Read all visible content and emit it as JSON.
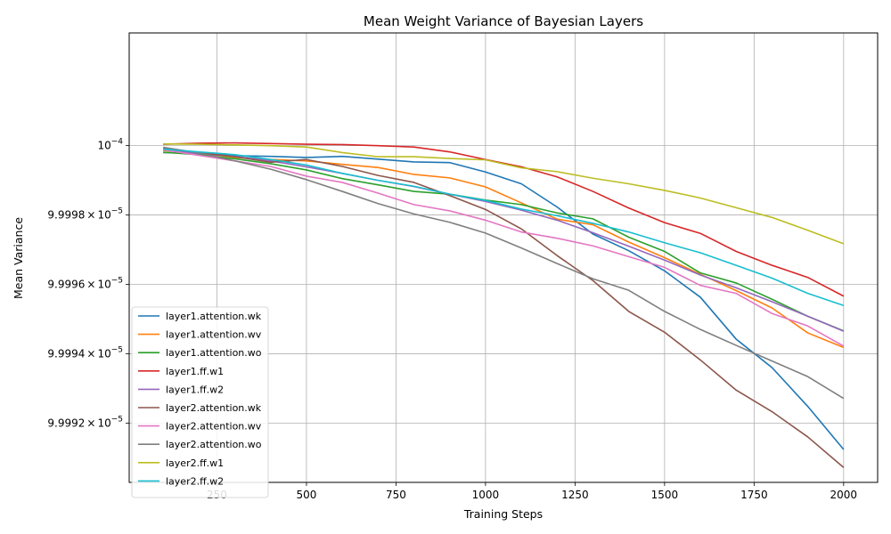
{
  "chart_data": {
    "type": "line",
    "title": "Mean Weight Variance of Bayesian Layers",
    "xlabel": "Training Steps",
    "ylabel": "Mean Variance",
    "xlim": [
      5,
      2095
    ],
    "ylim": [
      9.999029e-05,
      0.00010000325
    ],
    "x_ticks": [
      250,
      500,
      750,
      1000,
      1250,
      1500,
      1750,
      2000
    ],
    "y_ticks": [
      {
        "value": 0.0001,
        "base": "10",
        "exp": "−4",
        "mantissa": ""
      },
      {
        "value": 9.9998e-05,
        "base": "10",
        "exp": "−5",
        "mantissa": "9.9998"
      },
      {
        "value": 9.9996e-05,
        "base": "10",
        "exp": "−5",
        "mantissa": "9.9996"
      },
      {
        "value": 9.9994e-05,
        "base": "10",
        "exp": "−5",
        "mantissa": "9.9994"
      },
      {
        "value": 9.9992e-05,
        "base": "10",
        "exp": "−5",
        "mantissa": "9.9992"
      }
    ],
    "y_tick_times": "×",
    "grid": "x-and-y-major",
    "legend_position": "lower-left",
    "x": [
      100,
      200,
      300,
      400,
      500,
      600,
      700,
      800,
      900,
      1000,
      1100,
      1200,
      1300,
      1400,
      1500,
      1600,
      1700,
      1800,
      1900,
      2000
    ],
    "series": [
      {
        "name": "layer1.attention.wk",
        "color": "#1f77b4",
        "values": [
          9.99998e-05,
          9.999978e-05,
          9.999971e-05,
          9.999969e-05,
          9.999966e-05,
          9.999969e-05,
          9.999961e-05,
          9.999953e-05,
          9.999951e-05,
          9.999924e-05,
          9.99989e-05,
          9.999823e-05,
          9.999745e-05,
          9.999697e-05,
          9.999639e-05,
          9.999563e-05,
          9.999442e-05,
          9.99936e-05,
          9.999248e-05,
          9.999124e-05
        ]
      },
      {
        "name": "layer1.attention.wv",
        "color": "#ff7f0e",
        "values": [
          9.999986e-05,
          9.999979e-05,
          9.999966e-05,
          9.99996e-05,
          9.999956e-05,
          9.999946e-05,
          9.999937e-05,
          9.999917e-05,
          9.999907e-05,
          9.999881e-05,
          9.999835e-05,
          9.999788e-05,
          9.999772e-05,
          9.999722e-05,
          9.999677e-05,
          9.999629e-05,
          9.999582e-05,
          9.999532e-05,
          9.99946e-05,
          9.999418e-05
        ]
      },
      {
        "name": "layer1.attention.wo",
        "color": "#2ca02c",
        "values": [
          9.999981e-05,
          9.999974e-05,
          9.999962e-05,
          9.999948e-05,
          9.99993e-05,
          9.999905e-05,
          9.999887e-05,
          9.999868e-05,
          9.99986e-05,
          9.999843e-05,
          9.99983e-05,
          9.999806e-05,
          9.999789e-05,
          9.999736e-05,
          9.999695e-05,
          9.999633e-05,
          9.999604e-05,
          9.999557e-05,
          9.999508e-05,
          9.999466e-05
        ]
      },
      {
        "name": "layer1.ff.w1",
        "color": "#d62728",
        "values": [
          0.00010000004,
          0.00010000007,
          0.00010000008,
          0.00010000006,
          0.00010000004,
          0.00010000003,
          0.0001,
          9.999996e-05,
          9.999982e-05,
          9.99996e-05,
          9.999939e-05,
          9.99991e-05,
          9.999868e-05,
          9.99982e-05,
          9.999778e-05,
          9.999747e-05,
          9.999695e-05,
          9.999655e-05,
          9.99962e-05,
          9.999566e-05
        ]
      },
      {
        "name": "layer1.ff.w2",
        "color": "#9467bd",
        "values": [
          9.999988e-05,
          9.999977e-05,
          9.999969e-05,
          9.999956e-05,
          9.999939e-05,
          9.99992e-05,
          9.9999e-05,
          9.999882e-05,
          9.99986e-05,
          9.999839e-05,
          9.999814e-05,
          9.999785e-05,
          9.999749e-05,
          9.99971e-05,
          9.99967e-05,
          9.999627e-05,
          9.99959e-05,
          9.99955e-05,
          9.999508e-05,
          9.999465e-05
        ]
      },
      {
        "name": "layer2.attention.wk",
        "color": "#8c564b",
        "values": [
          9.999993e-05,
          9.99998e-05,
          9.999968e-05,
          9.999952e-05,
          9.99996e-05,
          9.99994e-05,
          9.999914e-05,
          9.999894e-05,
          9.999856e-05,
          9.999816e-05,
          9.99976e-05,
          9.999683e-05,
          9.999611e-05,
          9.999522e-05,
          9.999462e-05,
          9.999382e-05,
          9.999295e-05,
          9.999233e-05,
          9.99916e-05,
          9.999072e-05
        ]
      },
      {
        "name": "layer2.attention.wv",
        "color": "#e377c2",
        "values": [
          9.999988e-05,
          9.999972e-05,
          9.999956e-05,
          9.99994e-05,
          9.999912e-05,
          9.999894e-05,
          9.999863e-05,
          9.99983e-05,
          9.999812e-05,
          9.999785e-05,
          9.999751e-05,
          9.999733e-05,
          9.999711e-05,
          9.99968e-05,
          9.999649e-05,
          9.999597e-05,
          9.999574e-05,
          9.999516e-05,
          9.99948e-05,
          9.999422e-05
        ]
      },
      {
        "name": "layer2.attention.wo",
        "color": "#7f7f7f",
        "values": [
          9.999995e-05,
          9.999979e-05,
          9.999956e-05,
          9.999932e-05,
          9.999902e-05,
          9.999868e-05,
          9.999833e-05,
          9.999803e-05,
          9.999779e-05,
          9.999748e-05,
          9.999705e-05,
          9.99966e-05,
          9.999616e-05,
          9.999583e-05,
          9.999522e-05,
          9.99947e-05,
          9.999424e-05,
          9.999379e-05,
          9.999334e-05,
          9.999271e-05
        ]
      },
      {
        "name": "layer2.ff.w1",
        "color": "#bcbd22",
        "values": [
          0.00010000005,
          0.00010000004,
          0.00010000002,
          0.0001,
          9.999996e-05,
          9.99998e-05,
          9.999968e-05,
          9.999968e-05,
          9.999963e-05,
          9.999959e-05,
          9.999936e-05,
          9.999925e-05,
          9.999906e-05,
          9.99989e-05,
          9.999871e-05,
          9.999849e-05,
          9.999821e-05,
          9.999793e-05,
          9.999756e-05,
          9.999717e-05
        ]
      },
      {
        "name": "layer2.ff.w2",
        "color": "#17becf",
        "values": [
          9.99999e-05,
          9.999982e-05,
          9.999974e-05,
          9.99996e-05,
          9.999944e-05,
          9.99992e-05,
          9.9999e-05,
          9.999883e-05,
          9.99986e-05,
          9.999842e-05,
          9.999817e-05,
          9.999798e-05,
          9.999776e-05,
          9.999751e-05,
          9.99972e-05,
          9.999691e-05,
          9.999655e-05,
          9.999618e-05,
          9.999574e-05,
          9.999539e-05
        ]
      }
    ]
  }
}
